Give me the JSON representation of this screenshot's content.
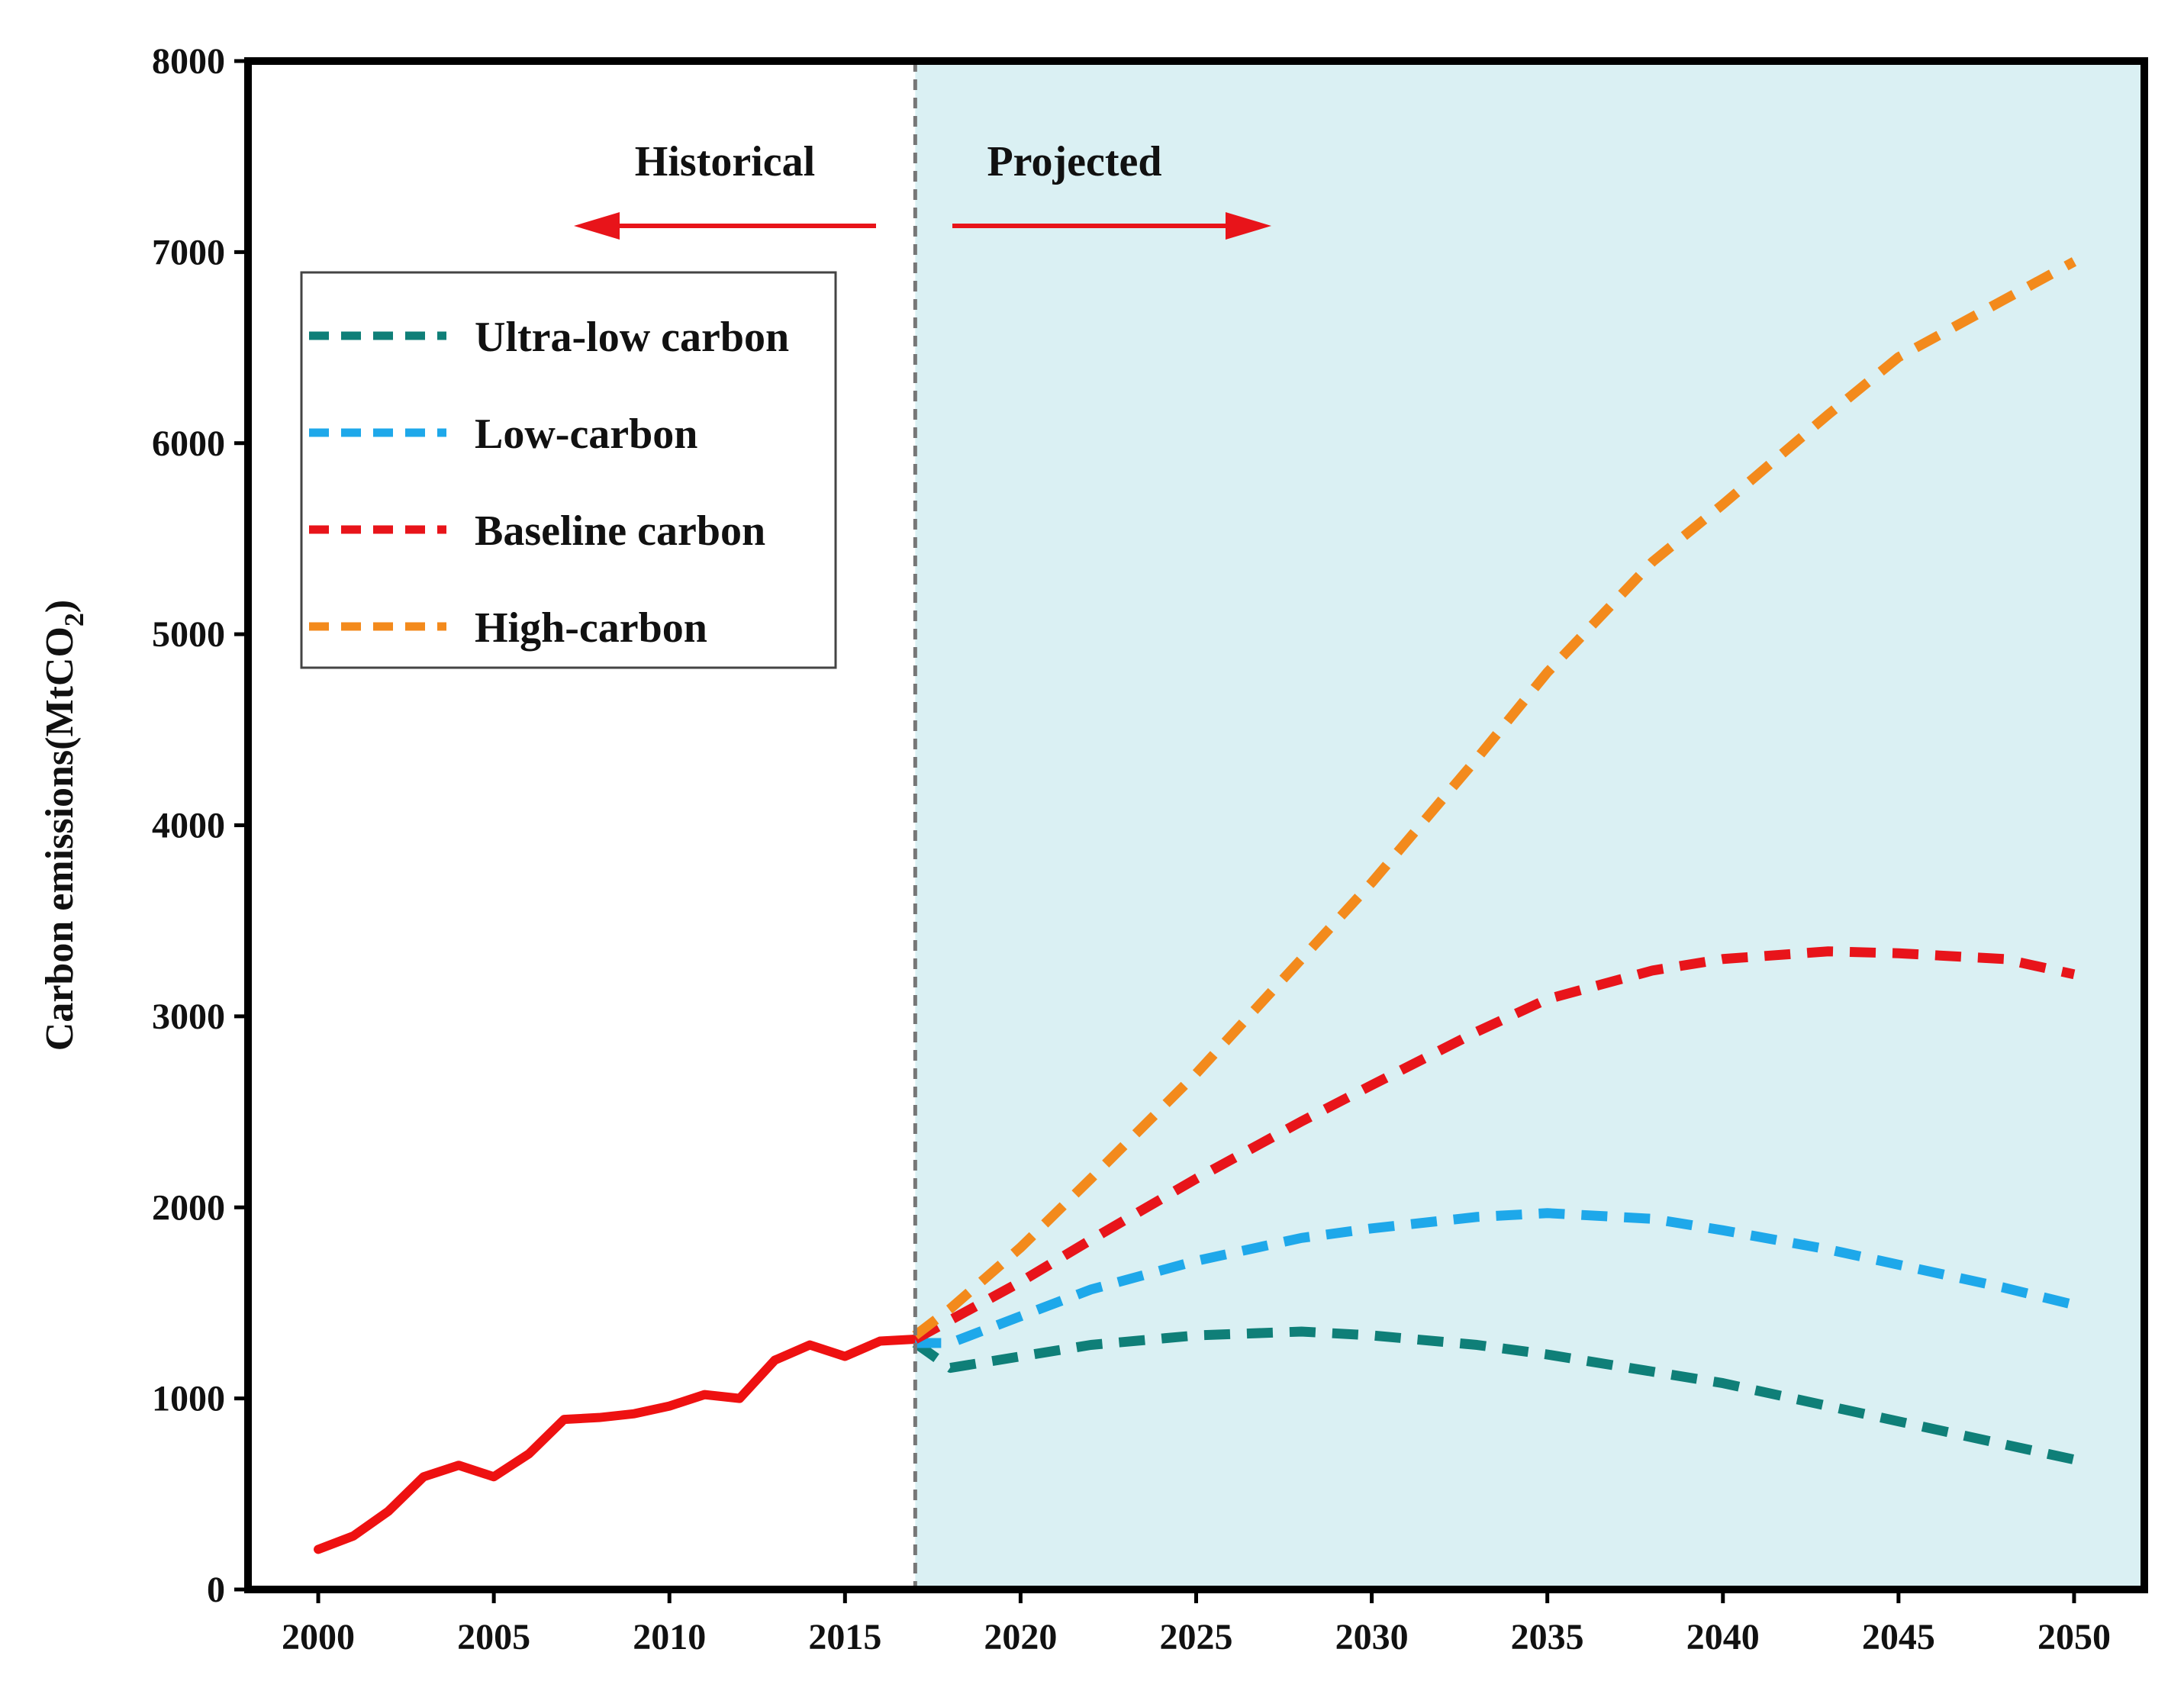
{
  "chart_data": {
    "type": "line",
    "title": "",
    "xlabel": "",
    "ylabel_main": "Carbon emissions(MtCO",
    "ylabel_sub": "2",
    "ylabel_close": ")",
    "xlim": [
      1998,
      2052
    ],
    "ylim": [
      0,
      8000
    ],
    "x_ticks": [
      2000,
      2005,
      2010,
      2015,
      2020,
      2025,
      2030,
      2035,
      2040,
      2045,
      2050
    ],
    "y_ticks": [
      0,
      1000,
      2000,
      3000,
      4000,
      5000,
      6000,
      7000,
      8000
    ],
    "divider_x": 2017,
    "projected_shading_color": "#daf0f3",
    "annotations": {
      "historical": "Historical",
      "projected": "Projected"
    },
    "arrow_color": "#e8141a",
    "legend_position": "upper-left",
    "historical": {
      "name": "Historical",
      "color": "#ee1111",
      "x": [
        2000,
        2001,
        2002,
        2003,
        2004,
        2005,
        2006,
        2007,
        2008,
        2009,
        2010,
        2011,
        2012,
        2013,
        2014,
        2015,
        2016,
        2017
      ],
      "y": [
        210,
        280,
        410,
        590,
        650,
        590,
        710,
        890,
        900,
        920,
        960,
        1020,
        1000,
        1200,
        1280,
        1220,
        1300,
        1310
      ]
    },
    "series": [
      {
        "name": "Ultra-low carbon",
        "color": "#0f7f78",
        "x": [
          2017,
          2018,
          2020,
          2022,
          2025,
          2028,
          2030,
          2033,
          2035,
          2038,
          2040,
          2043,
          2045,
          2048,
          2050
        ],
        "y": [
          1290,
          1160,
          1220,
          1280,
          1330,
          1350,
          1330,
          1280,
          1230,
          1140,
          1080,
          960,
          880,
          760,
          680
        ]
      },
      {
        "name": "Low-carbon",
        "color": "#1ea8ea",
        "x": [
          2017,
          2018,
          2020,
          2022,
          2025,
          2028,
          2030,
          2033,
          2035,
          2038,
          2040,
          2043,
          2045,
          2048,
          2050
        ],
        "y": [
          1290,
          1290,
          1430,
          1570,
          1720,
          1840,
          1890,
          1950,
          1970,
          1940,
          1880,
          1780,
          1700,
          1580,
          1490
        ]
      },
      {
        "name": "Baseline carbon",
        "color": "#e8141a",
        "x": [
          2017,
          2018,
          2020,
          2022,
          2025,
          2028,
          2030,
          2033,
          2035,
          2038,
          2040,
          2043,
          2045,
          2048,
          2050
        ],
        "y": [
          1310,
          1410,
          1610,
          1830,
          2150,
          2450,
          2640,
          2920,
          3090,
          3240,
          3300,
          3340,
          3330,
          3300,
          3220
        ]
      },
      {
        "name": "High-carbon",
        "color": "#f38a1c",
        "x": [
          2017,
          2018,
          2020,
          2022,
          2025,
          2028,
          2030,
          2033,
          2035,
          2038,
          2040,
          2043,
          2045,
          2048,
          2050
        ],
        "y": [
          1330,
          1470,
          1790,
          2150,
          2700,
          3300,
          3700,
          4350,
          4800,
          5380,
          5680,
          6150,
          6450,
          6750,
          6950
        ]
      }
    ]
  }
}
